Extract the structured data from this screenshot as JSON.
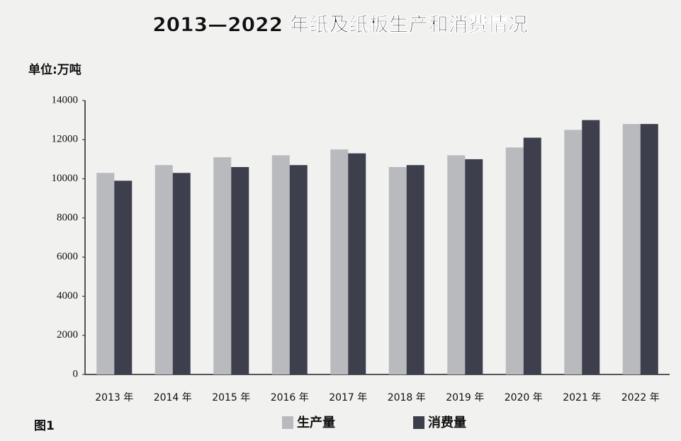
{
  "chart_data": {
    "type": "bar",
    "title": "2013—2022 年纸及纸板生产和消费情况",
    "ylabel": "单位:万吨",
    "figure_label": "图1",
    "categories": [
      "2013 年",
      "2014 年",
      "2015 年",
      "2016 年",
      "2017 年",
      "2018 年",
      "2019 年",
      "2020 年",
      "2021 年",
      "2022 年"
    ],
    "series": [
      {
        "name": "生产量",
        "color": "#b9babe",
        "values": [
          10300,
          10700,
          11100,
          11200,
          11500,
          10600,
          11200,
          11600,
          12500,
          12800
        ]
      },
      {
        "name": "消费量",
        "color": "#3e3f4d",
        "values": [
          9900,
          10300,
          10600,
          10700,
          11300,
          10700,
          11000,
          12100,
          13000,
          12800
        ]
      }
    ],
    "ylim": [
      0,
      14000
    ],
    "yticks": [
      0,
      2000,
      4000,
      6000,
      8000,
      10000,
      12000,
      14000
    ],
    "grid": false
  }
}
